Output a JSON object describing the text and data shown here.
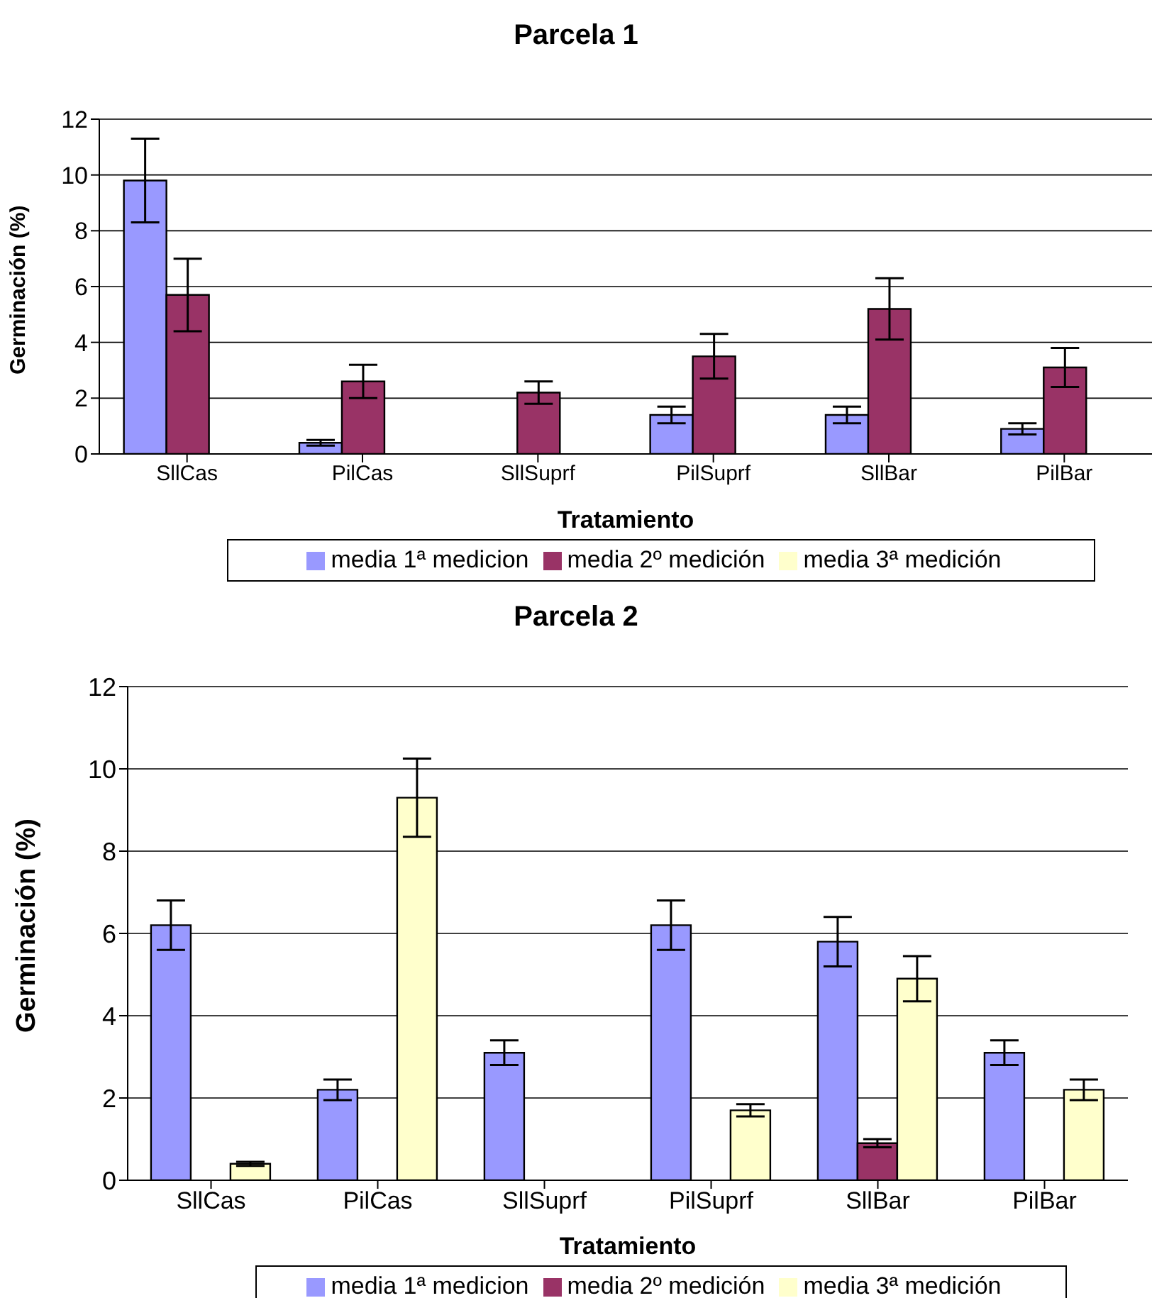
{
  "chart_data": [
    {
      "type": "bar",
      "title": "Parcela 1",
      "xlabel": "Tratamiento",
      "ylabel": "Germinación (%)",
      "categories": [
        "SllCas",
        "PilCas",
        "SllSuprf",
        "PilSuprf",
        "SllBar",
        "PilBar"
      ],
      "series": [
        {
          "name": "media 1ª medicion",
          "color": "#9999ff",
          "values": [
            9.8,
            0.4,
            0,
            1.4,
            1.4,
            0.9
          ],
          "errors": [
            1.5,
            0.1,
            null,
            0.3,
            0.3,
            0.2
          ]
        },
        {
          "name": "media 2º medición",
          "color": "#993366",
          "values": [
            5.7,
            2.6,
            2.2,
            3.5,
            5.2,
            3.1
          ],
          "errors": [
            1.3,
            0.6,
            0.4,
            0.8,
            1.1,
            0.7
          ]
        },
        {
          "name": "media 3ª medición",
          "color": "#ffffcc",
          "values": [
            null,
            null,
            null,
            null,
            null,
            null
          ]
        }
      ],
      "ylim": [
        0,
        12
      ],
      "yticks": [
        0,
        2,
        4,
        6,
        8,
        10,
        12
      ],
      "grid": "y",
      "legend": "bottom"
    },
    {
      "type": "bar",
      "title": "Parcela 2",
      "xlabel": "Tratamiento",
      "ylabel": "Germinación (%)",
      "categories": [
        "SllCas",
        "PilCas",
        "SllSuprf",
        "PilSuprf",
        "SllBar",
        "PilBar"
      ],
      "series": [
        {
          "name": "media 1ª medicion",
          "color": "#9999ff",
          "values": [
            6.2,
            2.2,
            3.1,
            6.2,
            5.8,
            3.1
          ],
          "errors": [
            0.6,
            0.25,
            0.3,
            0.6,
            0.6,
            0.3
          ]
        },
        {
          "name": "media 2º medición",
          "color": "#993366",
          "values": [
            0,
            0,
            0,
            0,
            0.9,
            0
          ],
          "errors": [
            null,
            null,
            null,
            null,
            0.1,
            null
          ]
        },
        {
          "name": "media 3ª medición",
          "color": "#ffffcc",
          "values": [
            0.4,
            9.3,
            0,
            1.7,
            4.9,
            2.2
          ],
          "errors": [
            0.05,
            0.95,
            null,
            0.15,
            0.55,
            0.25
          ]
        }
      ],
      "ylim": [
        0,
        12
      ],
      "yticks": [
        0,
        2,
        4,
        6,
        8,
        10,
        12
      ],
      "grid": "y",
      "legend": "bottom"
    }
  ]
}
